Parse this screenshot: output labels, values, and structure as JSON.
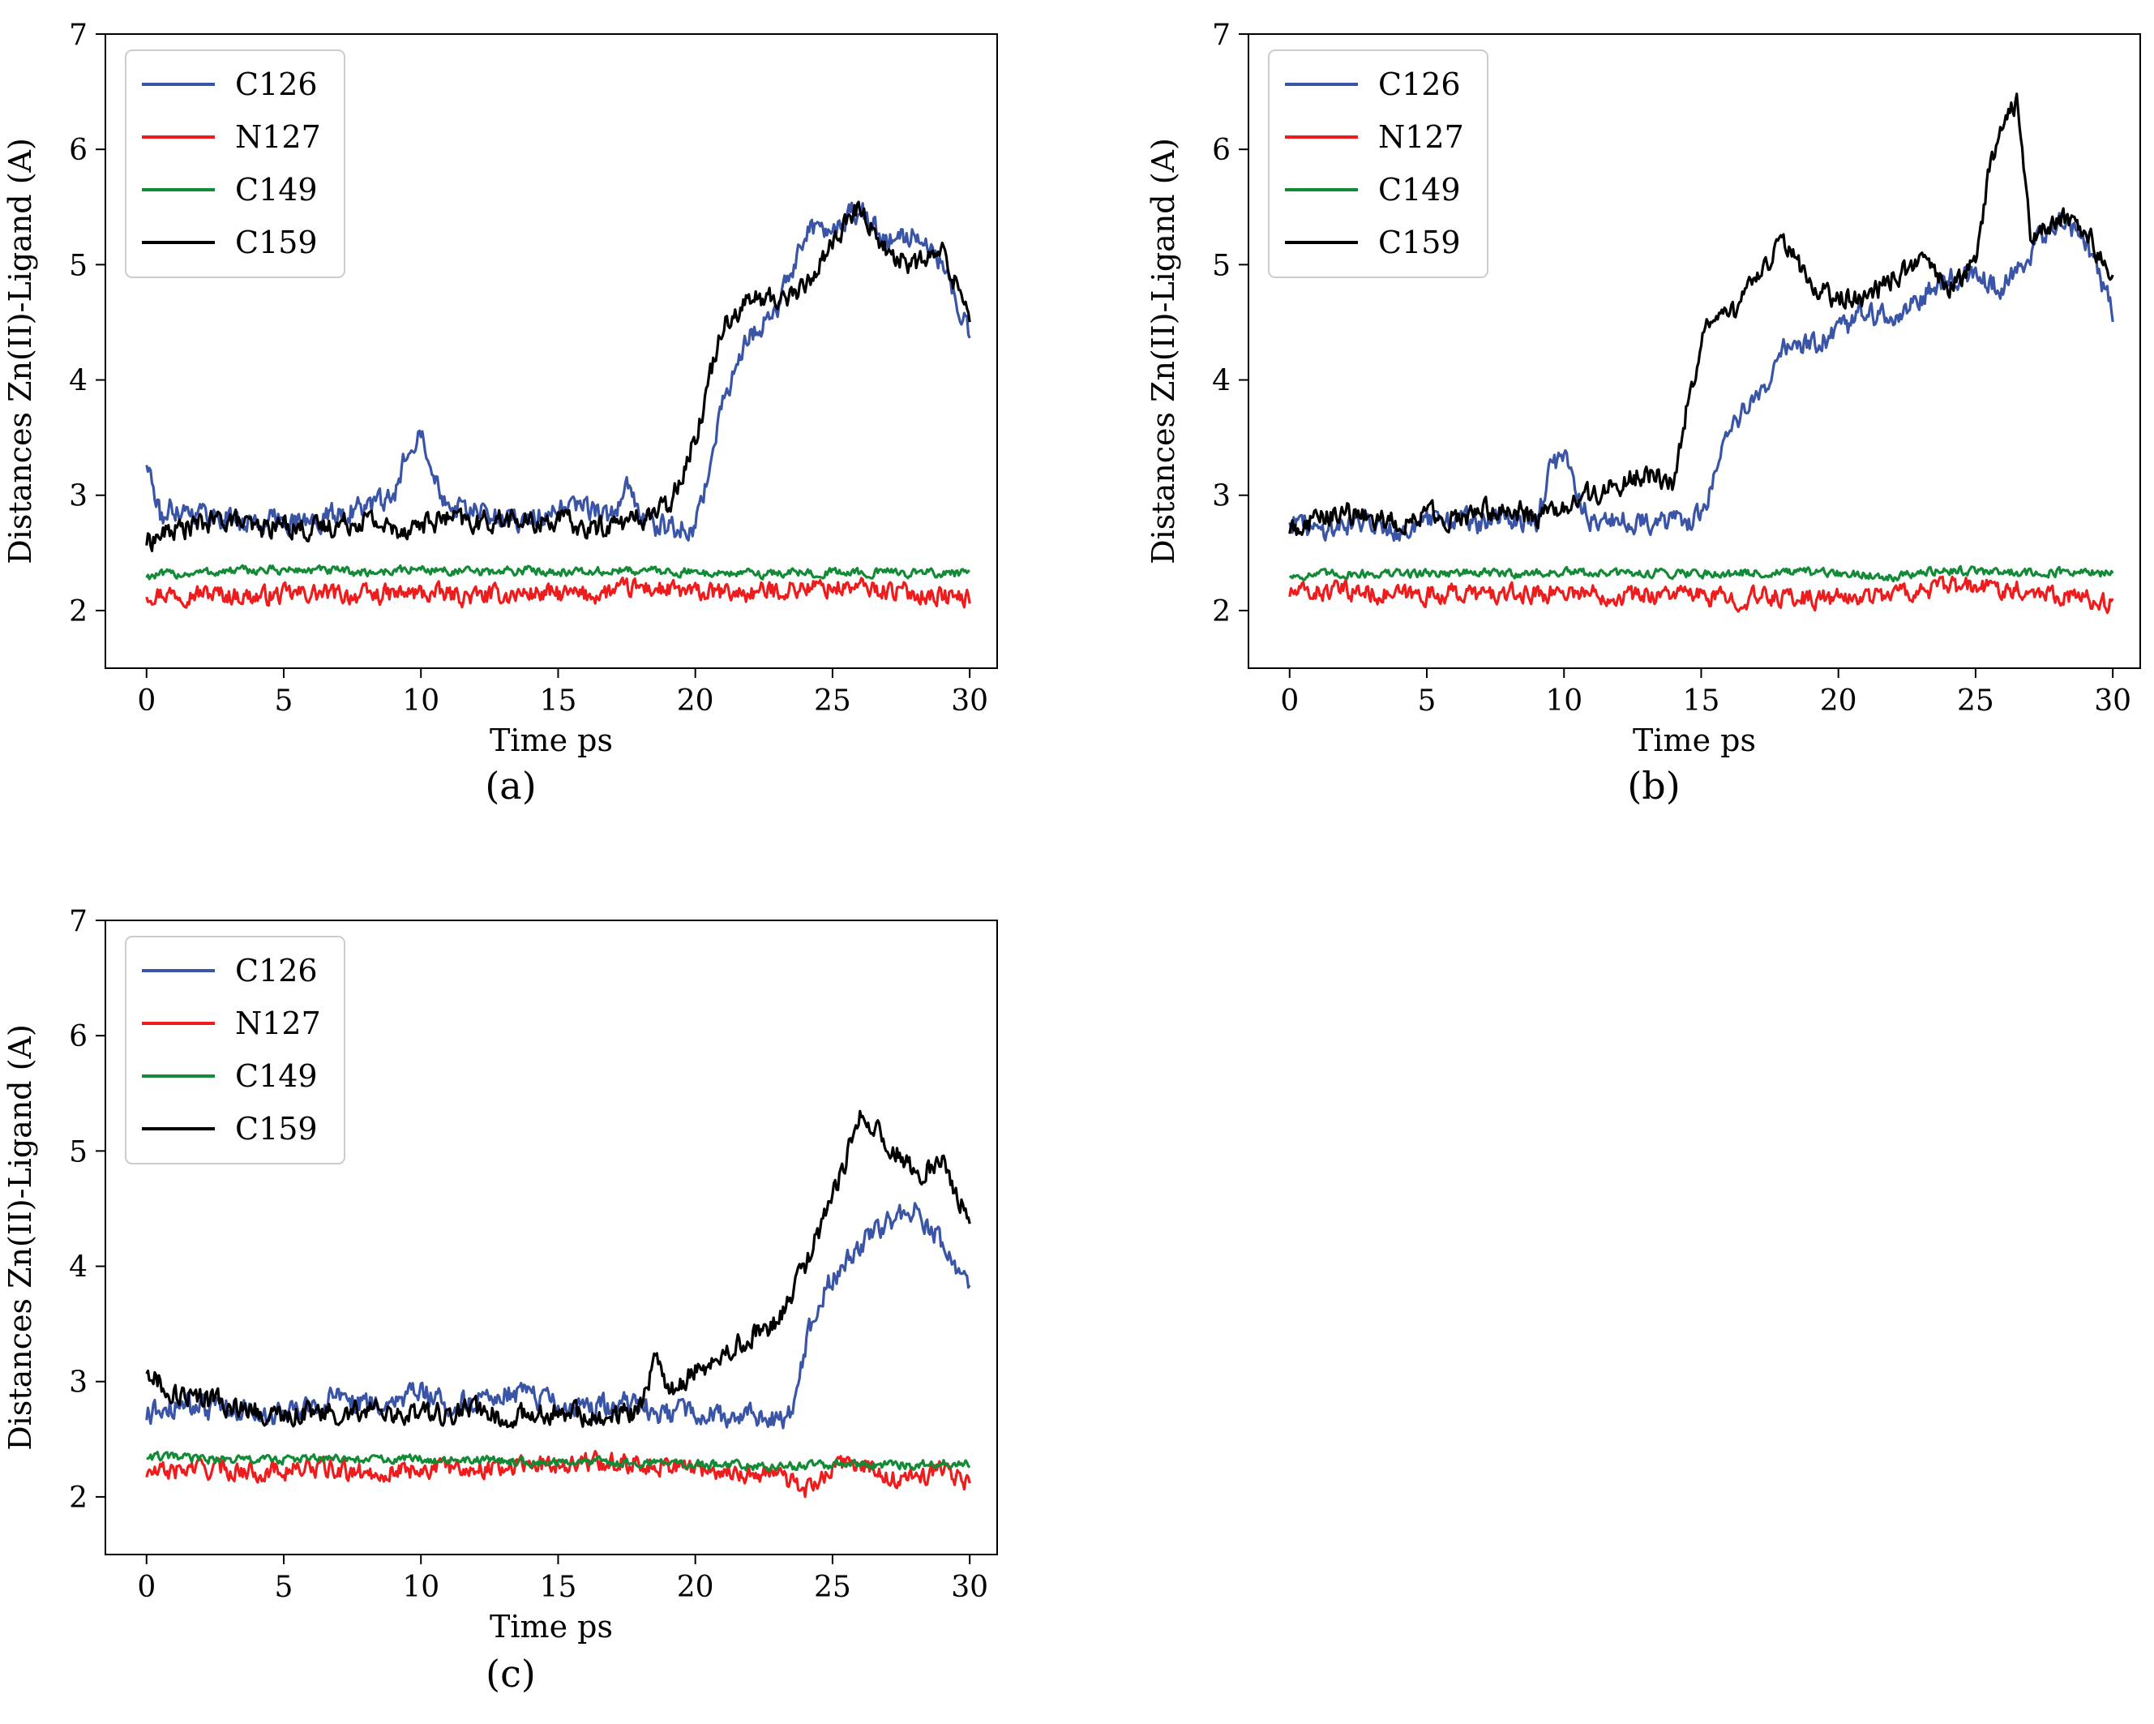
{
  "figure": {
    "background": "#ffffff"
  },
  "chart_data": [
    {
      "type": "line",
      "panel_label": "(a)",
      "xlabel": "Time ps",
      "ylabel": "Distances Zn(II)-Ligand (A)",
      "xlim": [
        -1.5,
        31
      ],
      "ylim": [
        1.5,
        7
      ],
      "xticks": [
        0,
        5,
        10,
        15,
        20,
        25,
        30
      ],
      "yticks": [
        2,
        3,
        4,
        5,
        6,
        7
      ],
      "legend_position": "top-left",
      "series": [
        {
          "name": "C126",
          "color": "#3a55a5",
          "x": [
            0,
            0.5,
            1,
            2,
            3,
            4,
            5,
            6,
            7,
            8,
            9,
            9.5,
            10,
            10.5,
            11,
            12,
            13,
            14,
            15,
            16,
            17,
            17.5,
            18,
            19,
            20,
            20.5,
            21,
            22,
            23,
            24,
            25,
            26,
            27,
            28,
            29,
            30
          ],
          "y": [
            3.3,
            2.8,
            2.9,
            2.85,
            2.8,
            2.75,
            2.8,
            2.75,
            2.85,
            2.9,
            2.95,
            3.4,
            3.6,
            3.2,
            2.9,
            2.85,
            2.8,
            2.8,
            2.85,
            2.9,
            2.8,
            3.1,
            2.8,
            2.7,
            2.75,
            3.2,
            3.8,
            4.4,
            4.6,
            5.3,
            5.3,
            5.5,
            5.2,
            5.3,
            5.0,
            4.4
          ]
        },
        {
          "name": "N127",
          "color": "#ee1c1c",
          "x": [
            0,
            2,
            4,
            6,
            8,
            10,
            12,
            14,
            16,
            18,
            20,
            22,
            24,
            26,
            28,
            30
          ],
          "y": [
            2.15,
            2.15,
            2.12,
            2.15,
            2.13,
            2.15,
            2.12,
            2.15,
            2.13,
            2.2,
            2.15,
            2.15,
            2.2,
            2.2,
            2.15,
            2.1
          ]
        },
        {
          "name": "C149",
          "color": "#128a36",
          "x": [
            0,
            2,
            4,
            6,
            8,
            10,
            12,
            14,
            16,
            18,
            20,
            22,
            24,
            26,
            28,
            30
          ],
          "y": [
            2.3,
            2.33,
            2.35,
            2.35,
            2.33,
            2.36,
            2.33,
            2.35,
            2.33,
            2.35,
            2.33,
            2.32,
            2.33,
            2.33,
            2.33,
            2.32
          ]
        },
        {
          "name": "C159",
          "color": "#000000",
          "x": [
            0,
            1,
            2,
            3,
            4,
            5,
            6,
            7,
            8,
            9,
            10,
            11,
            12,
            13,
            14,
            15,
            16,
            17,
            18,
            19,
            19.5,
            20,
            20.5,
            21,
            22,
            23,
            24,
            25,
            26,
            27,
            28,
            29,
            30
          ],
          "y": [
            2.6,
            2.7,
            2.75,
            2.8,
            2.7,
            2.75,
            2.7,
            2.75,
            2.8,
            2.7,
            2.75,
            2.8,
            2.75,
            2.8,
            2.75,
            2.8,
            2.7,
            2.75,
            2.8,
            2.9,
            3.2,
            3.5,
            4.0,
            4.5,
            4.7,
            4.7,
            4.8,
            5.2,
            5.5,
            5.1,
            5.0,
            5.1,
            4.6
          ]
        }
      ]
    },
    {
      "type": "line",
      "panel_label": "(b)",
      "xlabel": "Time ps",
      "ylabel": "Distances Zn(II)-Ligand (A)",
      "xlim": [
        -1.5,
        31
      ],
      "ylim": [
        1.5,
        7
      ],
      "xticks": [
        0,
        5,
        10,
        15,
        20,
        25,
        30
      ],
      "yticks": [
        2,
        3,
        4,
        5,
        6,
        7
      ],
      "legend_position": "top-left",
      "series": [
        {
          "name": "C126",
          "color": "#3a55a5",
          "x": [
            0,
            1,
            2,
            3,
            4,
            5,
            6,
            7,
            8,
            9,
            9.5,
            10,
            10.5,
            11,
            12,
            13,
            14,
            15,
            15.5,
            16,
            17,
            18,
            19,
            20,
            21,
            22,
            23,
            24,
            25,
            26,
            27,
            28,
            29,
            30
          ],
          "y": [
            2.8,
            2.7,
            2.75,
            2.8,
            2.7,
            2.75,
            2.8,
            2.75,
            2.8,
            2.8,
            3.2,
            3.4,
            3.0,
            2.8,
            2.75,
            2.8,
            2.75,
            2.8,
            3.2,
            3.6,
            3.8,
            4.3,
            4.3,
            4.4,
            4.6,
            4.5,
            4.7,
            4.9,
            4.9,
            4.8,
            5.1,
            5.4,
            5.2,
            4.6
          ]
        },
        {
          "name": "N127",
          "color": "#ee1c1c",
          "x": [
            0,
            2,
            4,
            6,
            8,
            10,
            12,
            14,
            16,
            18,
            20,
            22,
            24,
            26,
            28,
            30
          ],
          "y": [
            2.15,
            2.17,
            2.13,
            2.15,
            2.13,
            2.17,
            2.13,
            2.15,
            2.1,
            2.12,
            2.1,
            2.15,
            2.2,
            2.2,
            2.15,
            2.05
          ]
        },
        {
          "name": "C149",
          "color": "#128a36",
          "x": [
            0,
            2,
            4,
            6,
            8,
            10,
            12,
            14,
            16,
            18,
            20,
            22,
            24,
            26,
            28,
            30
          ],
          "y": [
            2.3,
            2.32,
            2.32,
            2.33,
            2.32,
            2.33,
            2.32,
            2.33,
            2.32,
            2.33,
            2.32,
            2.3,
            2.35,
            2.33,
            2.33,
            2.32
          ]
        },
        {
          "name": "C159",
          "color": "#000000",
          "x": [
            0,
            1,
            2,
            3,
            4,
            5,
            6,
            7,
            8,
            9,
            10,
            11,
            12,
            13,
            14,
            14.5,
            15,
            15.5,
            16,
            17,
            18,
            19,
            20,
            21,
            22,
            23,
            24,
            25,
            25.5,
            26,
            26.5,
            27,
            28,
            29,
            30
          ],
          "y": [
            2.7,
            2.8,
            2.85,
            2.8,
            2.75,
            2.85,
            2.8,
            2.85,
            2.9,
            2.8,
            2.9,
            3.0,
            3.1,
            3.2,
            3.1,
            3.8,
            4.3,
            4.6,
            4.5,
            4.9,
            5.2,
            4.8,
            4.7,
            4.7,
            4.9,
            5.0,
            4.8,
            5.0,
            5.8,
            6.3,
            6.4,
            5.2,
            5.4,
            5.3,
            4.9
          ]
        }
      ]
    },
    {
      "type": "line",
      "panel_label": "(c)",
      "xlabel": "Time ps",
      "ylabel": "Distances Zn(II)-Ligand (A)",
      "xlim": [
        -1.5,
        31
      ],
      "ylim": [
        1.5,
        7
      ],
      "xticks": [
        0,
        5,
        10,
        15,
        20,
        25,
        30
      ],
      "yticks": [
        2,
        3,
        4,
        5,
        6,
        7
      ],
      "legend_position": "top-left",
      "series": [
        {
          "name": "C126",
          "color": "#3a55a5",
          "x": [
            0,
            1,
            2,
            3,
            4,
            5,
            6,
            7,
            8,
            9,
            10,
            11,
            12,
            13,
            14,
            15,
            16,
            17,
            18,
            19,
            20,
            21,
            22,
            23,
            23.5,
            24,
            24.5,
            25,
            26,
            27,
            28,
            29,
            29.5,
            30
          ],
          "y": [
            2.7,
            2.8,
            2.75,
            2.8,
            2.75,
            2.7,
            2.8,
            2.85,
            2.8,
            2.85,
            2.9,
            2.8,
            2.85,
            2.9,
            2.85,
            2.8,
            2.75,
            2.8,
            2.8,
            2.7,
            2.75,
            2.7,
            2.75,
            2.65,
            2.7,
            3.3,
            3.7,
            3.9,
            4.2,
            4.4,
            4.5,
            4.2,
            3.9,
            3.8
          ]
        },
        {
          "name": "N127",
          "color": "#ee1c1c",
          "x": [
            0,
            2,
            4,
            6,
            8,
            10,
            12,
            14,
            16,
            18,
            20,
            22,
            23,
            24,
            25,
            26,
            27,
            28,
            29,
            30
          ],
          "y": [
            2.2,
            2.25,
            2.22,
            2.25,
            2.2,
            2.25,
            2.25,
            2.28,
            2.3,
            2.3,
            2.25,
            2.2,
            2.2,
            2.05,
            2.25,
            2.3,
            2.15,
            2.15,
            2.25,
            2.1
          ]
        },
        {
          "name": "C149",
          "color": "#128a36",
          "x": [
            0,
            2,
            4,
            6,
            8,
            10,
            12,
            14,
            16,
            18,
            20,
            22,
            24,
            26,
            28,
            30
          ],
          "y": [
            2.35,
            2.33,
            2.32,
            2.33,
            2.32,
            2.33,
            2.32,
            2.3,
            2.3,
            2.3,
            2.28,
            2.27,
            2.27,
            2.28,
            2.28,
            2.3
          ]
        },
        {
          "name": "C159",
          "color": "#000000",
          "x": [
            0,
            1,
            2,
            3,
            4,
            5,
            6,
            7,
            8,
            9,
            10,
            11,
            12,
            13,
            14,
            15,
            16,
            17,
            18,
            18.5,
            19,
            20,
            21,
            22,
            23,
            24,
            25,
            26,
            27,
            28,
            29,
            30
          ],
          "y": [
            3.1,
            2.9,
            2.85,
            2.8,
            2.75,
            2.7,
            2.75,
            2.7,
            2.75,
            2.7,
            2.75,
            2.7,
            2.75,
            2.7,
            2.7,
            2.75,
            2.7,
            2.7,
            2.75,
            3.2,
            2.9,
            3.1,
            3.2,
            3.4,
            3.5,
            4.0,
            4.6,
            5.3,
            5.1,
            4.8,
            4.9,
            4.4
          ]
        }
      ]
    }
  ]
}
